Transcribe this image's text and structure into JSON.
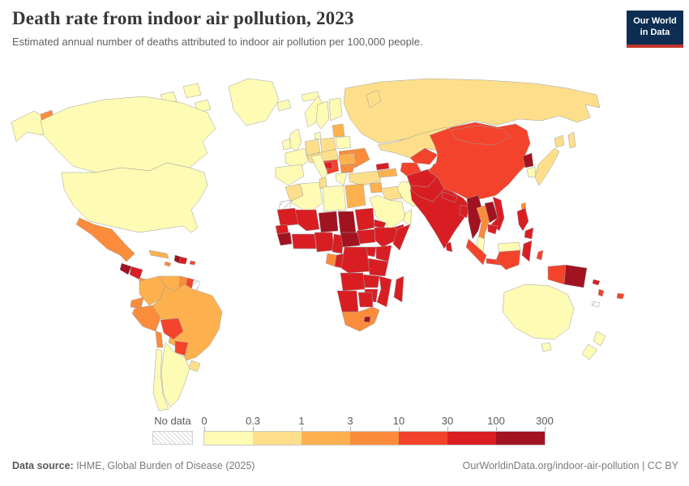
{
  "header": {
    "title": "Death rate from indoor air pollution, 2023",
    "subtitle": "Estimated annual number of deaths attributed to indoor air pollution per 100,000 people.",
    "logo": {
      "line1": "Our World",
      "line2": "in Data",
      "bg_color": "#0d2e52",
      "accent_color": "#c5362c"
    }
  },
  "legend": {
    "no_data_label": "No data",
    "ticks": [
      "0",
      "0.3",
      "1",
      "3",
      "10",
      "30",
      "100",
      "300"
    ],
    "bins": [
      "0-0.3",
      "0.3-1",
      "1-3",
      "3-10",
      "10-30",
      "30-100",
      "100-300"
    ],
    "bin_colors": [
      "#FEFBB5",
      "#FDDF8B",
      "#FDB14E",
      "#FA8C3C",
      "#F4432C",
      "#D91E23",
      "#A21321"
    ]
  },
  "footer": {
    "source_label": "Data source:",
    "source_text": " IHME, Global Burden of Disease (2025)",
    "credit": "OurWorldinData.org/indoor-air-pollution | CC BY"
  },
  "chart_data": {
    "type": "heatmap",
    "subtype": "choropleth-world-map",
    "title": "Death rate from indoor air pollution, 2023",
    "unit": "deaths per 100,000 people",
    "scale_ticks": [
      0,
      0.3,
      1,
      3,
      10,
      30,
      100,
      300
    ],
    "legend_position": "bottom",
    "no_data_style": "gray-hatch",
    "regions": {
      "greenland": "0-0.3",
      "canada": "0-0.3",
      "canada-arctic": "0-0.3",
      "alaska": "0-0.3",
      "russia-far-east": "3-10",
      "usa": "0-0.3",
      "mexico": "3-10",
      "guatemala": "100-300",
      "honduras-nicaragua": "30-100",
      "costa-rica-panama": "3-10",
      "cuba": "1-3",
      "jamaica": "3-10",
      "haiti": "100-300",
      "dominican-republic": "30-100",
      "puerto-rico": "10-30",
      "colombia": "1-3",
      "venezuela": "1-3",
      "guyana": "3-10",
      "suriname": "10-30",
      "french-guiana": "no-data",
      "ecuador": "3-10",
      "peru": "3-10",
      "brazil": "1-3",
      "bolivia": "10-30",
      "paraguay": "10-30",
      "uruguay": "0.3-1",
      "argentina": "0-0.3",
      "chile-north": "3-10",
      "chile": "0-0.3",
      "iceland": "0-0.3",
      "ireland": "0-0.3",
      "uk": "0-0.3",
      "norway": "0-0.3",
      "sweden": "0-0.3",
      "finland": "0-0.3",
      "denmark": "0-0.3",
      "svalbard": "0-0.3",
      "france": "0-0.3",
      "iberia": "0-0.3",
      "germany": "0.3-1",
      "poland": "0.3-1",
      "central-europe": "0.3-1",
      "baltic-states": "1-3",
      "belarus": "0-0.3",
      "ukraine": "3-10",
      "romania": "1-3",
      "bulgaria": "3-10",
      "balkans-west": "10-30",
      "bosnia": "30-100",
      "italy": "0-0.3",
      "greece": "0-0.3",
      "russia": "0.3-1",
      "novaya-zemlya": "0.3-1",
      "sakhalin": "0.3-1",
      "turkey": "0.3-1",
      "georgia": "30-100",
      "armenia-azerbaijan": "1-3",
      "syria": "1-3",
      "iraq": "0.3-1",
      "iran": "0-0.3",
      "saudi-arabia": "0-0.3",
      "yemen": "30-100",
      "oman": "0-0.3",
      "kazakhstan": "0.3-1",
      "uzbekistan": "10-30",
      "turkmenistan": "10-30",
      "kyrgyzstan": "30-100",
      "tajikistan": "30-100",
      "afghanistan": "30-100",
      "pakistan": "30-100",
      "india": "30-100",
      "nepal": "30-100",
      "bangladesh": "30-100",
      "sri-lanka": "30-100",
      "myanmar": "100-300",
      "thailand": "3-10",
      "laos": "100-300",
      "vietnam": "30-100",
      "cambodia": "30-100",
      "china": "10-30",
      "mongolia": "10-30",
      "north-korea": "100-300",
      "south-korea": "0-0.3",
      "japan": "0.3-1",
      "taiwan": "3-10",
      "malaysia-peninsula": "0-0.3",
      "borneo-malaysia": "0-0.3",
      "borneo-indonesia": "10-30",
      "sumatra": "10-30",
      "java": "10-30",
      "sulawesi": "30-100",
      "moluccas": "10-30",
      "papua-indonesia": "10-30",
      "papua-new-guinea": "100-300",
      "philippines": "30-100",
      "solomon-islands": "30-100",
      "vanuatu": "10-30",
      "fiji": "10-30",
      "new-caledonia": "no-data",
      "morocco": "0.3-1",
      "western-sahara": "no-data",
      "algeria": "0-0.3",
      "tunisia": "0.3-1",
      "libya": "0-0.3",
      "egypt": "1-3",
      "mauritania": "30-100",
      "mali": "30-100",
      "niger": "100-300",
      "chad": "100-300",
      "sudan": "30-100",
      "eritrea": "30-100",
      "senegal": "30-100",
      "guinea-sierra-leone": "100-300",
      "cote-divoire-ghana": "30-100",
      "nigeria": "30-100",
      "cameroon": "30-100",
      "central-african-republic": "100-300",
      "south-sudan": "30-100",
      "ethiopia": "30-100",
      "somalia": "30-100",
      "kenya": "30-100",
      "uganda": "30-100",
      "gabon": "3-10",
      "congo": "30-100",
      "drc": "30-100",
      "tanzania": "30-100",
      "angola": "30-100",
      "zambia": "30-100",
      "mozambique": "30-100",
      "zimbabwe": "30-100",
      "namibia": "30-100",
      "botswana": "30-100",
      "south-africa": "3-10",
      "lesotho": "100-300",
      "madagascar": "30-100",
      "australia": "0-0.3",
      "tasmania": "0-0.3",
      "new-zealand": "0-0.3"
    }
  }
}
